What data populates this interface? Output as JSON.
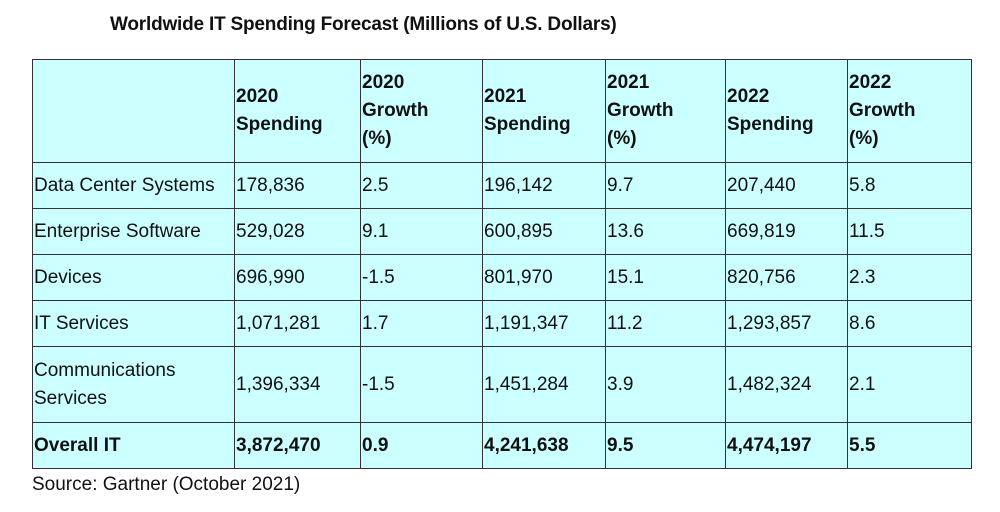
{
  "title": "Worldwide IT Spending Forecast (Millions of U.S. Dollars)",
  "columns": [
    {
      "lines": [
        ""
      ]
    },
    {
      "lines": [
        "2020",
        "Spending"
      ]
    },
    {
      "lines": [
        "2020",
        "Growth",
        "(%)"
      ]
    },
    {
      "lines": [
        "2021",
        "Spending"
      ]
    },
    {
      "lines": [
        "2021",
        "Growth",
        "(%)"
      ]
    },
    {
      "lines": [
        "2022",
        "Spending"
      ]
    },
    {
      "lines": [
        "2022",
        "Growth",
        "(%)"
      ]
    }
  ],
  "rows": [
    {
      "segment": "Data Center Systems",
      "s2020": "178,836",
      "g2020": "2.5",
      "s2021": "196,142",
      "g2021": "9.7",
      "s2022": "207,440",
      "g2022": "5.8"
    },
    {
      "segment": "Enterprise Software",
      "s2020": "529,028",
      "g2020": "9.1",
      "s2021": "600,895",
      "g2021": "13.6",
      "s2022": "669,819",
      "g2022": "11.5"
    },
    {
      "segment": "Devices",
      "s2020": "696,990",
      "g2020": "-1.5",
      "s2021": "801,970",
      "g2021": "15.1",
      "s2022": "820,756",
      "g2022": "2.3"
    },
    {
      "segment": "IT Services",
      "s2020": "1,071,281",
      "g2020": "1.7",
      "s2021": "1,191,347",
      "g2021": "11.2",
      "s2022": "1,293,857",
      "g2022": "8.6"
    },
    {
      "segment": "Communications Services",
      "s2020": "1,396,334",
      "g2020": "-1.5",
      "s2021": "1,451,284",
      "g2021": "3.9",
      "s2022": "1,482,324",
      "g2022": "2.1"
    },
    {
      "segment": "Overall IT",
      "s2020": "3,872,470",
      "g2020": "0.9",
      "s2021": "4,241,638",
      "g2021": "9.5",
      "s2022": "4,474,197",
      "g2022": "5.5"
    }
  ],
  "source": "Source: Gartner (October 2021)",
  "colors": {
    "table_bg": "#ccffff",
    "border": "#333333",
    "text": "#111111"
  }
}
